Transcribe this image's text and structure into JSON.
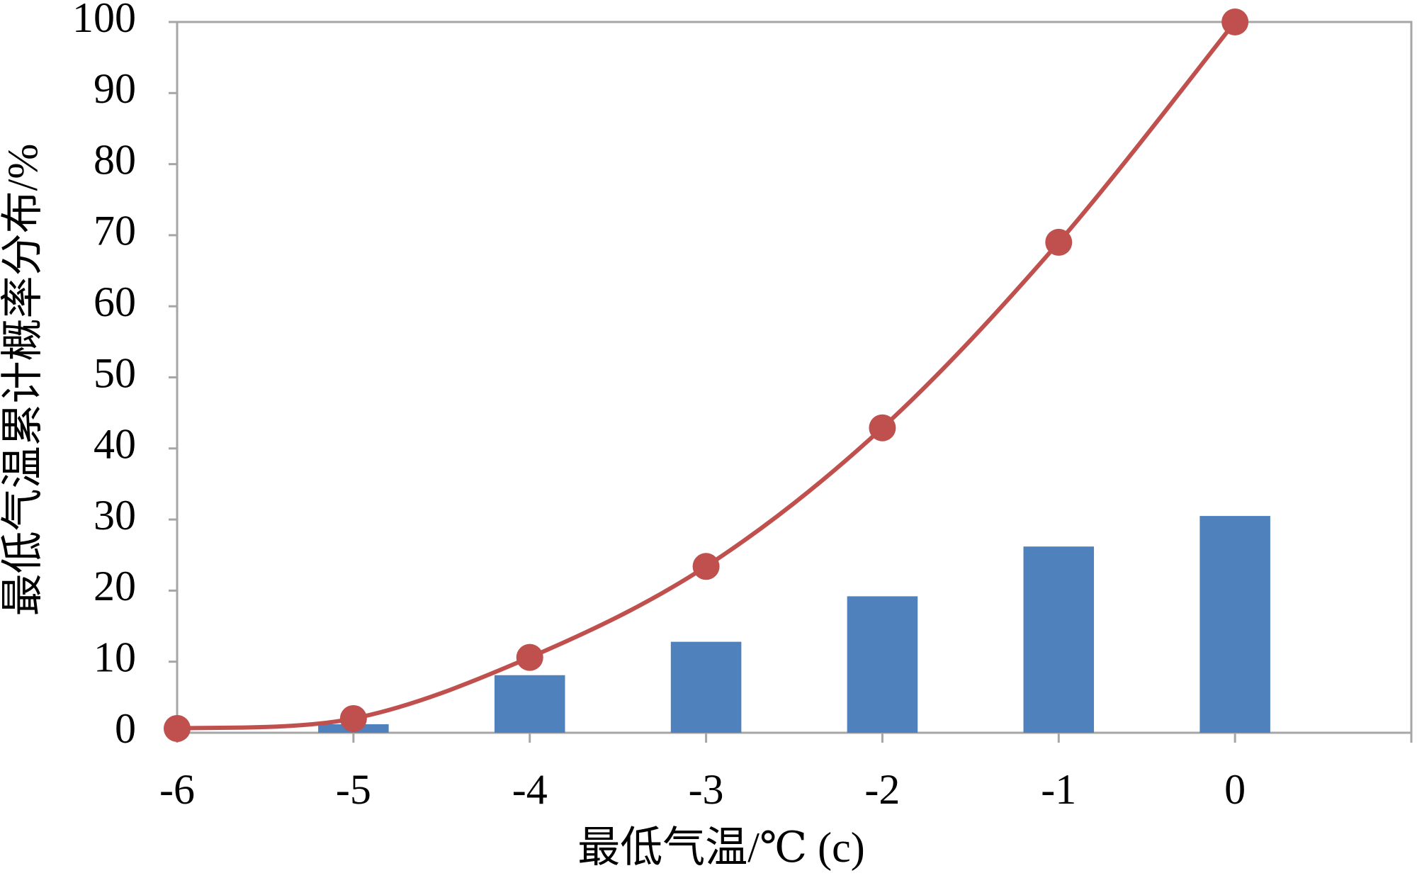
{
  "chart_data": {
    "type": "combo",
    "y_label": "最低气温累计概率分布/%",
    "x_label": "最低气温/℃ (c)",
    "xlim": [
      -6,
      1
    ],
    "xticks": [
      -6,
      -5,
      -4,
      -3,
      -2,
      -1,
      0
    ],
    "ylim": [
      0,
      100
    ],
    "yticks": [
      0,
      10,
      20,
      30,
      40,
      50,
      60,
      70,
      80,
      90,
      100
    ],
    "x": [
      -6,
      -5,
      -4,
      -3,
      -2,
      -1,
      0
    ],
    "series": [
      {
        "type": "bar",
        "color": "#4f81bd",
        "values": [
          null,
          1.2,
          8.1,
          12.8,
          19.2,
          26.2,
          30.5
        ]
      },
      {
        "type": "line",
        "color": "#c0504d",
        "values": [
          0.6,
          2.0,
          10.6,
          23.4,
          42.9,
          69,
          100
        ]
      }
    ]
  }
}
